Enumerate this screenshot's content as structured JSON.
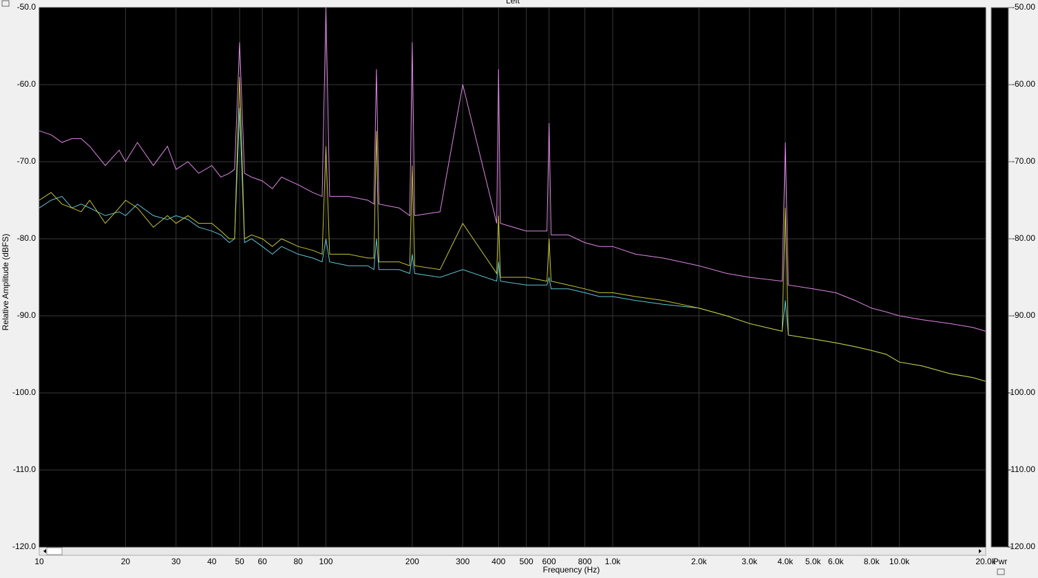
{
  "chart_data": {
    "type": "line",
    "title": "Left",
    "xlabel": "Frequency (Hz)",
    "ylabel": "Relative Amplitude (dBFS)",
    "y2label": "Pwr",
    "xscale": "log",
    "grid": true,
    "xlim": [
      10,
      20000
    ],
    "ylim": [
      -120,
      -50
    ],
    "y2lim": [
      -120,
      -50
    ],
    "xticks": [
      10,
      20,
      30,
      40,
      50,
      60,
      80,
      100,
      200,
      300,
      400,
      500,
      600,
      800,
      {
        "value": 1000,
        "label": "1.0k"
      },
      {
        "value": 2000,
        "label": "2.0k"
      },
      {
        "value": 3000,
        "label": "3.0k"
      },
      {
        "value": 4000,
        "label": "4.0k"
      },
      {
        "value": 5000,
        "label": "5.0k"
      },
      {
        "value": 6000,
        "label": "6.0k"
      },
      {
        "value": 8000,
        "label": "8.0k"
      },
      {
        "value": 10000,
        "label": "10.0k"
      },
      {
        "value": 20000,
        "label": "20.0k"
      }
    ],
    "yticks": [
      {
        "value": -50,
        "label": "-50.0"
      },
      {
        "value": -60,
        "label": "-60.0"
      },
      {
        "value": -70,
        "label": "-70.0"
      },
      {
        "value": -80,
        "label": "-80.0"
      },
      {
        "value": -90,
        "label": "-90.0"
      },
      {
        "value": -100,
        "label": "-100.0"
      },
      {
        "value": -110,
        "label": "-110.0"
      },
      {
        "value": -120,
        "label": "-120.0"
      }
    ],
    "y2ticks": [
      {
        "value": -50,
        "label": "-50.00"
      },
      {
        "value": -60,
        "label": "-60.00"
      },
      {
        "value": -70,
        "label": "-70.00"
      },
      {
        "value": -80,
        "label": "-80.00"
      },
      {
        "value": -90,
        "label": "-90.00"
      },
      {
        "value": -100,
        "label": "-100.00"
      },
      {
        "value": -110,
        "label": "-110.00"
      },
      {
        "value": -120,
        "label": "-120.00"
      }
    ],
    "x": [
      10,
      11,
      12,
      13,
      14,
      15,
      17,
      19,
      20,
      22,
      25,
      28,
      30,
      33,
      36,
      40,
      43,
      46,
      48,
      50,
      52,
      55,
      60,
      65,
      70,
      80,
      90,
      97,
      100,
      103,
      120,
      140,
      147,
      150,
      153,
      180,
      196,
      200,
      204,
      250,
      300,
      394,
      400,
      406,
      500,
      590,
      600,
      610,
      700,
      800,
      900,
      1000,
      1200,
      1500,
      2000,
      2500,
      3000,
      3900,
      4000,
      4100,
      5000,
      6000,
      7000,
      8000,
      9000,
      10000,
      12000,
      15000,
      18000,
      20000
    ],
    "series": [
      {
        "color": "#e088e8",
        "values": [
          -66,
          -66.5,
          -67.5,
          -67,
          -67,
          -68,
          -70.5,
          -68.5,
          -70,
          -67.5,
          -70.5,
          -68,
          -71,
          -70,
          -71.5,
          -70.5,
          -72,
          -71.5,
          -71,
          -54.5,
          -71.5,
          -72,
          -72.5,
          -73.5,
          -72,
          -73,
          -74,
          -74.5,
          -50,
          -74.5,
          -74.5,
          -75,
          -75.5,
          -58,
          -75.5,
          -76,
          -77,
          -54.5,
          -77,
          -76.5,
          -60,
          -78,
          -58,
          -78,
          -79,
          -79,
          -65,
          -79.5,
          -79.5,
          -80.5,
          -81,
          -81,
          -82,
          -82.5,
          -83.5,
          -84.5,
          -85,
          -85.5,
          -67.5,
          -86,
          -86.5,
          -87,
          -88,
          -89,
          -89.5,
          -90,
          -90.5,
          -91,
          -91.5,
          -92
        ]
      },
      {
        "color": "#5ec8d8",
        "values": [
          -76,
          -75,
          -74.5,
          -76,
          -75.5,
          -76,
          -77,
          -76.5,
          -77,
          -75.5,
          -77,
          -77.5,
          -77,
          -77.5,
          -78.5,
          -79,
          -79.5,
          -80.5,
          -80,
          -63,
          -80.5,
          -80,
          -81,
          -82,
          -81,
          -82,
          -82.5,
          -83,
          -80,
          -83,
          -83.5,
          -83.5,
          -84,
          -80,
          -84,
          -84,
          -84.5,
          -82,
          -84.5,
          -85,
          -84,
          -85.5,
          -83,
          -85.5,
          -86,
          -86,
          -85,
          -86.5,
          -86.5,
          -87,
          -87.5,
          -87.5,
          -88,
          -88.5,
          -89,
          -90,
          -91,
          -92,
          -88,
          -92.5,
          -93,
          -93.5,
          -94,
          -94.5,
          -95,
          -96,
          -96.5,
          -97.5,
          -98,
          -98.5
        ]
      },
      {
        "color": "#c8c832",
        "values": [
          -75,
          -74,
          -75.5,
          -76,
          -76.5,
          -75,
          -78,
          -76,
          -75,
          -76,
          -78.5,
          -77,
          -78,
          -77,
          -78,
          -78,
          -79,
          -80,
          -80,
          -59,
          -80,
          -79.5,
          -80,
          -81,
          -80,
          -81,
          -81.5,
          -82,
          -68,
          -82,
          -82,
          -82.5,
          -82.5,
          -66,
          -83,
          -83,
          -83.5,
          -70.5,
          -83.5,
          -84,
          -78,
          -84.5,
          -77,
          -85,
          -85,
          -85.5,
          -80,
          -85.5,
          -86,
          -86.5,
          -87,
          -87,
          -87.5,
          -88,
          -89,
          -90,
          -91,
          -92,
          -76,
          -92.5,
          -93,
          -93.5,
          -94,
          -94.5,
          -95,
          -96,
          -96.5,
          -97.5,
          -98,
          -98.5
        ]
      }
    ]
  }
}
